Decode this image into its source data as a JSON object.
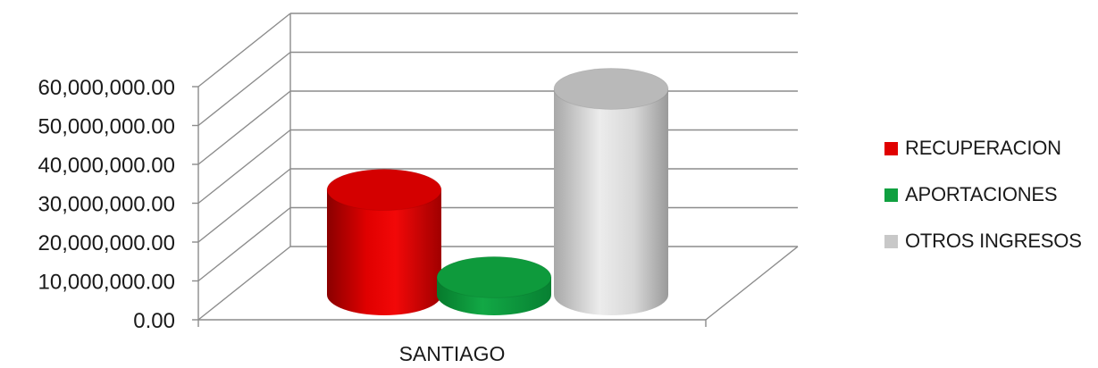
{
  "chart_data": {
    "type": "bar",
    "style": "3d-cylinder",
    "categories": [
      "SANTIAGO"
    ],
    "series": [
      {
        "name": "RECUPERACION",
        "values": [
          27000000
        ],
        "color": "#e00000"
      },
      {
        "name": "APORTACIONES",
        "values": [
          4500000
        ],
        "color": "#10a040"
      },
      {
        "name": "OTROS INGRESOS",
        "values": [
          53000000
        ],
        "color": "#c8c8c8"
      }
    ],
    "yticks": [
      "0.00",
      "10,000,000.00",
      "20,000,000.00",
      "30,000,000.00",
      "40,000,000.00",
      "50,000,000.00",
      "60,000,000.00"
    ],
    "ylim": [
      0,
      60000000
    ],
    "grid": true,
    "legend_position": "right",
    "title": "",
    "xlabel": "",
    "ylabel": ""
  }
}
